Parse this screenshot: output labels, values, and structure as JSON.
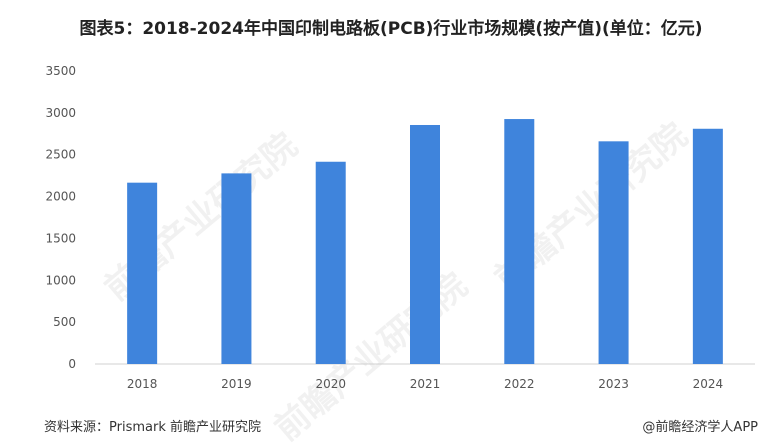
{
  "title": "图表5：2018-2024年中国印制电路板(PCB)行业市场规模(按产值)(单位：亿元)",
  "chart_data": {
    "type": "bar",
    "categories": [
      "2018",
      "2019",
      "2020",
      "2021",
      "2022",
      "2023",
      "2024"
    ],
    "values": [
      2166,
      2277,
      2416,
      2855,
      2926,
      2660,
      2810
    ],
    "ylim": [
      0,
      3500
    ],
    "yticks": [
      0,
      500,
      1000,
      1500,
      2000,
      2500,
      3000,
      3500
    ],
    "grid": false,
    "bar_color": "#3f84dc",
    "xlabel": "",
    "ylabel": ""
  },
  "footer": {
    "source": "资料来源：Prismark 前瞻产业研究院",
    "brand": "@前瞻经济学人APP"
  },
  "watermark": "前瞻产业研究院"
}
